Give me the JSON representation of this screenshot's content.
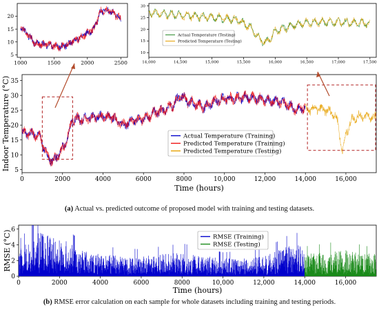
{
  "chart_data": [
    {
      "id": "main",
      "type": "line",
      "xlabel": "Time (hours)",
      "ylabel": "Indoor Temperature (°C)",
      "xlim": [
        0,
        17500
      ],
      "ylim": [
        4,
        37
      ],
      "xticks": [
        "0",
        "2000",
        "4000",
        "6000",
        "8000",
        "10,000",
        "12,000",
        "14,000",
        "16,000"
      ],
      "yticks": [
        "5",
        "10",
        "15",
        "20",
        "25",
        "30",
        "35"
      ],
      "grid": false,
      "legend": "center-right",
      "series": [
        {
          "name": "Actual Temperature (Training)",
          "color": "#0000cc",
          "x": [
            0,
            300,
            600,
            900,
            1100,
            1300,
            1500,
            1700,
            1900,
            2100,
            2300,
            2500,
            3000,
            3500,
            4000,
            4500,
            5000,
            5500,
            6000,
            6500,
            7000,
            7500,
            7800,
            8200,
            8600,
            9000,
            9500,
            10000,
            10500,
            11000,
            11500,
            12000,
            12500,
            13000,
            13500,
            14000
          ],
          "y": [
            17.5,
            17,
            17,
            16,
            12,
            9,
            8,
            9,
            11,
            13,
            17,
            22,
            22,
            22.5,
            23,
            22.5,
            20,
            21.5,
            22,
            24,
            25,
            27,
            30,
            28,
            27,
            26,
            28,
            29,
            29,
            29.5,
            29,
            28.5,
            28,
            27.5,
            25,
            26
          ]
        },
        {
          "name": "Predicted Temperature (Training)",
          "color": "#ee1111",
          "x": [
            0,
            300,
            600,
            900,
            1100,
            1300,
            1500,
            1700,
            1900,
            2100,
            2300,
            2500,
            3000,
            3500,
            4000,
            4500,
            5000,
            5500,
            6000,
            6500,
            7000,
            7500,
            7800,
            8200,
            8600,
            9000,
            9500,
            10000,
            10500,
            11000,
            11500,
            12000,
            12500,
            13000,
            13500,
            14000
          ],
          "y": [
            17.5,
            17,
            17,
            16,
            12,
            9,
            8,
            9,
            11,
            13,
            17,
            22,
            22,
            22.5,
            23,
            22.5,
            20,
            21.5,
            22,
            24,
            25,
            27,
            30,
            28,
            27,
            26,
            28,
            29,
            29,
            29.5,
            29,
            28.5,
            28,
            27.5,
            25,
            26
          ]
        },
        {
          "name": "Predicted Temperature (Testing)",
          "color": "#e6a000",
          "x": [
            14000,
            14500,
            15000,
            15400,
            15600,
            15750,
            15850,
            16000,
            16300,
            16600,
            17000,
            17500
          ],
          "y": [
            25,
            25.5,
            25,
            24,
            21,
            14,
            11,
            17,
            22,
            23,
            23,
            22.5
          ]
        }
      ]
    },
    {
      "id": "inset-left",
      "type": "line",
      "xlim": [
        950,
        2600
      ],
      "ylim": [
        4,
        25
      ],
      "xticks": [
        "1000",
        "1500",
        "2000",
        "2500"
      ],
      "yticks": [
        "5",
        "10",
        "15",
        "20"
      ],
      "series": [
        {
          "color": "#0000cc",
          "x": [
            1000,
            1100,
            1200,
            1300,
            1400,
            1500,
            1600,
            1700,
            1800,
            1900,
            2000,
            2100,
            2200,
            2300,
            2400,
            2500
          ],
          "y": [
            16,
            13,
            10,
            9,
            9,
            8.5,
            8,
            9,
            10.5,
            12,
            13.5,
            15,
            22,
            22.5,
            21,
            19
          ]
        },
        {
          "color": "#ee1111",
          "x": [
            1000,
            1100,
            1200,
            1300,
            1400,
            1500,
            1600,
            1700,
            1800,
            1900,
            2000,
            2100,
            2200,
            2300,
            2400,
            2500
          ],
          "y": [
            16,
            13,
            10,
            9,
            9,
            8.5,
            8,
            9,
            10.5,
            12,
            13.5,
            15,
            22,
            22.5,
            21,
            19
          ]
        }
      ]
    },
    {
      "id": "inset-right",
      "type": "line",
      "xlim": [
        14000,
        17600
      ],
      "ylim": [
        8,
        31
      ],
      "xticks": [
        "14,000",
        "14,500",
        "15,000",
        "15,500",
        "16,000",
        "16,500",
        "17,000",
        "17,500"
      ],
      "yticks": [
        "10",
        "15",
        "20",
        "25",
        "30"
      ],
      "legend": "center-left",
      "series": [
        {
          "name": "Actual Temperature (Testing)",
          "color": "#2e8b2e",
          "x": [
            14000,
            14500,
            15000,
            15400,
            15600,
            15750,
            15850,
            16000,
            16300,
            16600,
            17000,
            17500
          ],
          "y": [
            27,
            26,
            25,
            24,
            21,
            16,
            14,
            19,
            22,
            23,
            23,
            22.5
          ]
        },
        {
          "name": "Predicted Temperature (Testing)",
          "color": "#e6a000",
          "x": [
            14000,
            14500,
            15000,
            15400,
            15600,
            15750,
            15850,
            16000,
            16300,
            16600,
            17000,
            17500
          ],
          "y": [
            27,
            26,
            25,
            24,
            21,
            16,
            14,
            19,
            22,
            23,
            23,
            22.5
          ]
        }
      ]
    },
    {
      "id": "rmse",
      "type": "line",
      "xlabel": "Time (hours)",
      "ylabel": "RMSE (°C)",
      "xlim": [
        0,
        17500
      ],
      "ylim": [
        0,
        6.5
      ],
      "xticks": [
        "0",
        "2000",
        "4000",
        "6000",
        "8000",
        "10,000",
        "12,000",
        "14,000",
        "16,000"
      ],
      "yticks": [
        "0",
        "2",
        "4",
        "6"
      ],
      "legend": "top-right",
      "series": [
        {
          "name": "RMSE (Training)",
          "color": "#0000cc",
          "x": [
            0,
            1000,
            2000,
            3000,
            4000,
            6000,
            8000,
            10000,
            12000,
            13500,
            14000
          ],
          "y": [
            1.2,
            2.0,
            1.8,
            1.2,
            1.0,
            0.9,
            1.1,
            0.8,
            0.9,
            1.5,
            1.3
          ]
        },
        {
          "name": "RMSE (Testing)",
          "color": "#1a8a1a",
          "x": [
            14000,
            15000,
            16000,
            17000,
            17500
          ],
          "y": [
            1.0,
            1.1,
            1.2,
            1.0,
            1.1
          ]
        }
      ]
    }
  ],
  "captions": {
    "a_label": "(a)",
    "a_text": " Actual vs. predicted outcome of proposed model with training and testing datasets.",
    "b_label": "(b)",
    "b_text": " RMSE error calculation on each sample for whole datasets including training and testing periods."
  }
}
